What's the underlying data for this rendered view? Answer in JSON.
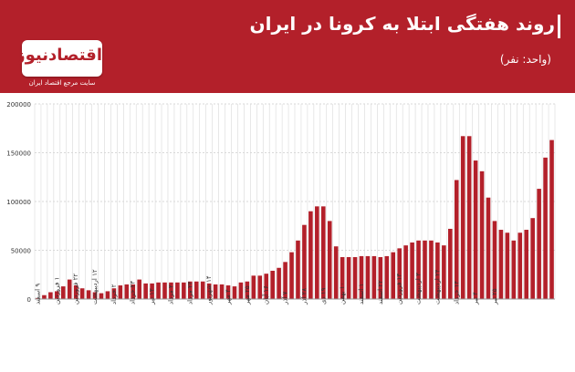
{
  "header": {
    "title": "روند هفتگی ابتلا به کرونا در ایران",
    "unit_note": "(واحد: نفر)",
    "logo_text": "اقتصادنیوز",
    "logo_caption": "سایت مرجع اقتصاد ایران"
  },
  "colors": {
    "header_bg": "#b3202a",
    "bar": "#b3202a",
    "grid": "#d9d9d9",
    "axis_text": "#333333"
  },
  "chart_data": {
    "type": "bar",
    "ylim": [
      0,
      200000
    ],
    "yticks": [
      0,
      50000,
      100000,
      150000,
      200000
    ],
    "ytick_labels": [
      "0",
      "50000",
      "100000",
      "150000",
      "200000"
    ],
    "grid": true,
    "values": [
      1000,
      4000,
      7000,
      8000,
      13000,
      20000,
      14000,
      11000,
      9000,
      7000,
      6000,
      8000,
      11000,
      14000,
      15000,
      15000,
      20000,
      16000,
      16000,
      17000,
      17000,
      17000,
      17000,
      17000,
      18000,
      18000,
      18000,
      16000,
      15000,
      15000,
      14000,
      13000,
      17000,
      18000,
      24000,
      24000,
      26000,
      29000,
      32000,
      38000,
      48000,
      60000,
      76000,
      90000,
      95000,
      95000,
      80000,
      54000,
      43000,
      43000,
      43000,
      44000,
      44000,
      44000,
      43000,
      44000,
      48000,
      52000,
      55000,
      58000,
      60000,
      60000,
      60000,
      58000,
      55000,
      72000,
      122000,
      167000,
      167000,
      142000,
      131000,
      104000,
      80000,
      71000,
      68000,
      60000,
      68000,
      71000,
      83000,
      113000,
      145000,
      163000
    ],
    "x_labels": [
      {
        "i": 0,
        "text": "۹ اسفند"
      },
      {
        "i": 3,
        "text": "۱ فروردین"
      },
      {
        "i": 6,
        "text": "۲۲ فروردین"
      },
      {
        "i": 9,
        "text": "۱۲ اردیبهشت"
      },
      {
        "i": 12,
        "text": "۲ خرداد"
      },
      {
        "i": 15,
        "text": "۲۳ خرداد"
      },
      {
        "i": 18,
        "text": "۱۳ تیر"
      },
      {
        "i": 21,
        "text": "۳ مرداد"
      },
      {
        "i": 24,
        "text": "۲۴ مرداد"
      },
      {
        "i": 27,
        "text": "۱۴ شهریور"
      },
      {
        "i": 30,
        "text": "۴ مهر"
      },
      {
        "i": 33,
        "text": "۲۵ مهر"
      },
      {
        "i": 36,
        "text": "۱۶ آبان"
      },
      {
        "i": 39,
        "text": "۷ آذر"
      },
      {
        "i": 42,
        "text": "۲۸ آذر"
      },
      {
        "i": 45,
        "text": "۱۹ دی"
      },
      {
        "i": 48,
        "text": "۱۰ بهمن"
      },
      {
        "i": 51,
        "text": "۱ اسفند"
      },
      {
        "i": 54,
        "text": "۲۲ اسفند"
      },
      {
        "i": 57,
        "text": "۱۳ فروردین"
      },
      {
        "i": 60,
        "text": "۳ اردیبهشت"
      },
      {
        "i": 63,
        "text": "۲۴ اردیبهشت"
      },
      {
        "i": 66,
        "text": "۱۴ خرداد"
      },
      {
        "i": 69,
        "text": "۴ تیر"
      },
      {
        "i": 72,
        "text": "۲۵ تیر"
      }
    ]
  }
}
